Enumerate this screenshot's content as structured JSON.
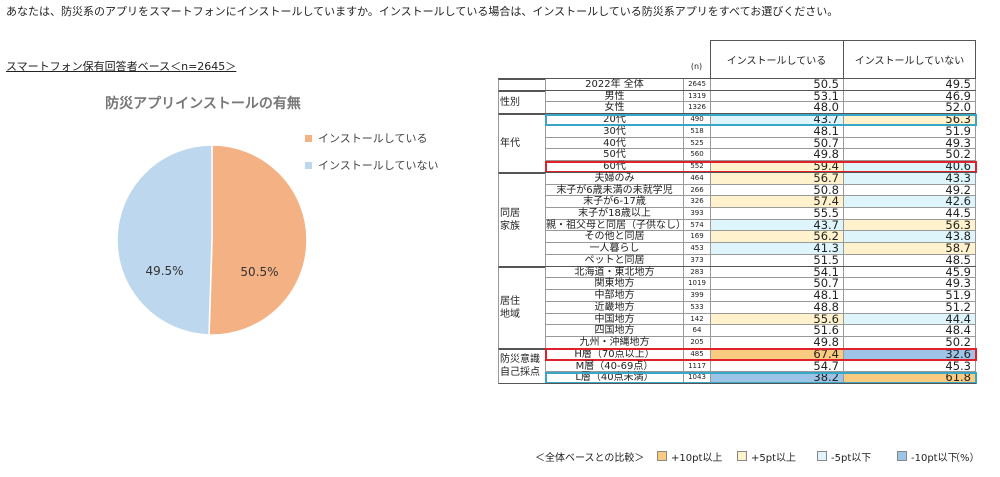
{
  "question": "あなたは、防災系のアプリをスマートフォンにインストールしていますか。インストールしている場合は、インストールしている防災系アプリをすべてお選びください。",
  "base": "スマートフォン保有回答者ベース＜n=2645＞",
  "chart_data": {
    "type": "pie",
    "title": "防災アプリインストールの有無",
    "categories": [
      "インストールしている",
      "インストールしていない"
    ],
    "values": [
      50.5,
      49.5
    ],
    "value_labels": [
      "50.5%",
      "49.5%"
    ],
    "colors": [
      "#f4b183",
      "#bdd7ee"
    ]
  },
  "table": {
    "header": {
      "n": "(n)",
      "columns": [
        "インストールしている",
        "インストールしていない"
      ]
    },
    "groups": [
      {
        "label": [],
        "rows": [
          {
            "label": "2022年 全体",
            "n": 2645,
            "values": [
              50.5,
              49.5
            ]
          }
        ]
      },
      {
        "label": [
          "性別"
        ],
        "rows": [
          {
            "label": "男性",
            "n": 1319,
            "values": [
              53.1,
              46.9
            ]
          },
          {
            "label": "女性",
            "n": 1326,
            "values": [
              48.0,
              52.0
            ],
            "value_labels": [
              "48.0",
              "52.0"
            ]
          }
        ]
      },
      {
        "label": [
          "年代"
        ],
        "rows": [
          {
            "label": "20代",
            "n": 490,
            "values": [
              43.7,
              56.3
            ],
            "fills": [
              "#ddf5fb",
              "#fff2cc"
            ],
            "outline": "#3aa6c6"
          },
          {
            "label": "30代",
            "n": 518,
            "values": [
              48.1,
              51.9
            ]
          },
          {
            "label": "40代",
            "n": 525,
            "values": [
              50.7,
              49.3
            ]
          },
          {
            "label": "50代",
            "n": 560,
            "values": [
              49.8,
              50.2
            ]
          },
          {
            "label": "60代",
            "n": 552,
            "values": [
              59.4,
              40.6
            ],
            "fills": [
              "#fff2cc",
              "#ddf5fb"
            ],
            "outline": "#e0202a"
          }
        ]
      },
      {
        "label": [
          "同居",
          "家族"
        ],
        "rows": [
          {
            "label": "夫婦のみ",
            "n": 464,
            "values": [
              56.7,
              43.3
            ],
            "fills": [
              "#fff2cc",
              "#ddf5fb"
            ]
          },
          {
            "label": "末子が6歳未満の未就学児",
            "n": 266,
            "values": [
              50.8,
              49.2
            ]
          },
          {
            "label": "末子が6-17歳",
            "n": 326,
            "values": [
              57.4,
              42.6
            ],
            "fills": [
              "#fff2cc",
              "#ddf5fb"
            ]
          },
          {
            "label": "末子が18歳以上",
            "n": 393,
            "values": [
              55.5,
              44.5
            ]
          },
          {
            "label": "親・祖父母と同居（子供なし）",
            "n": 574,
            "values": [
              43.7,
              56.3
            ],
            "fills": [
              "#ddf5fb",
              "#fff2cc"
            ]
          },
          {
            "label": "その他と同居",
            "n": 169,
            "values": [
              56.2,
              43.8
            ],
            "fills": [
              "#fff2cc",
              "#ddf5fb"
            ]
          },
          {
            "label": "一人暮らし",
            "n": 453,
            "values": [
              41.3,
              58.7
            ],
            "fills": [
              "#ddf5fb",
              "#fff2cc"
            ]
          },
          {
            "label": "ペットと同居",
            "n": 373,
            "values": [
              51.5,
              48.5
            ]
          }
        ]
      },
      {
        "label": [
          "居住",
          "地域"
        ],
        "rows": [
          {
            "label": "北海道・東北地方",
            "n": 283,
            "values": [
              54.1,
              45.9
            ]
          },
          {
            "label": "関東地方",
            "n": 1019,
            "values": [
              50.7,
              49.3
            ]
          },
          {
            "label": "中部地方",
            "n": 399,
            "values": [
              48.1,
              51.9
            ]
          },
          {
            "label": "近畿地方",
            "n": 533,
            "values": [
              48.8,
              51.2
            ]
          },
          {
            "label": "中国地方",
            "n": 142,
            "values": [
              55.6,
              44.4
            ],
            "fills": [
              "#fff2cc",
              "#ddf5fb"
            ]
          },
          {
            "label": "四国地方",
            "n": 64,
            "values": [
              51.6,
              48.4
            ]
          },
          {
            "label": "九州・沖縄地方",
            "n": 205,
            "values": [
              49.8,
              50.2
            ]
          }
        ]
      },
      {
        "label": [
          "防災意識",
          "自己採点"
        ],
        "rows": [
          {
            "label": "H層（70点以上）",
            "n": 485,
            "values": [
              67.4,
              32.6
            ],
            "fills": [
              "#f8cb80",
              "#9dc3e6"
            ],
            "outline": "#e0202a"
          },
          {
            "label": "M層（40-69点）",
            "n": 1117,
            "values": [
              54.7,
              45.3
            ]
          },
          {
            "label": "L層（40点未満）",
            "n": 1043,
            "values": [
              38.2,
              61.8
            ],
            "fills": [
              "#9dc3e6",
              "#f8cb80"
            ],
            "outline": "#3aa6c6"
          }
        ]
      }
    ]
  },
  "legend": {
    "title": "＜全体ベースとの比較＞",
    "items": [
      {
        "color": "#f8cb80",
        "label": "+10pt以上"
      },
      {
        "color": "#fff2cc",
        "label": "+5pt以上"
      },
      {
        "color": "#ddf5fb",
        "label": "-5pt以下"
      },
      {
        "color": "#9dc3e6",
        "label": "-10pt以下"
      }
    ],
    "unit": "（%）"
  }
}
